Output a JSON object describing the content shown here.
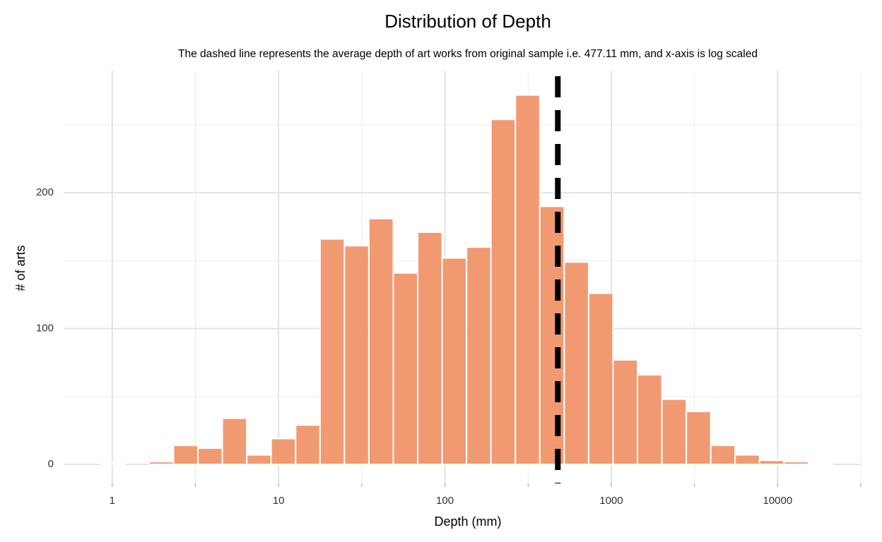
{
  "chart_data": {
    "type": "histogram",
    "title": "Distribution of Depth",
    "subtitle": "The dashed line represents the average depth of art works from original sample i.e. 477.11 mm, and x-axis is log scaled",
    "x_label": "Depth (mm)",
    "y_label": "# of arts",
    "bins": [
      0.847,
      1.188,
      1.665,
      2.335,
      3.274,
      4.59,
      6.436,
      9.026,
      12.66,
      17.75,
      24.89,
      34.89,
      48.93,
      68.61,
      96.2,
      134.9,
      189.1,
      265.2,
      371.8,
      521.4,
      731.1,
      1025,
      1437,
      2015,
      2826,
      3962,
      5556,
      7791,
      10925,
      15318,
      21480
    ],
    "values": [
      1,
      0,
      2,
      14,
      12,
      34,
      7,
      19,
      29,
      166,
      161,
      181,
      141,
      171,
      152,
      160,
      254,
      272,
      190,
      149,
      126,
      77,
      66,
      48,
      39,
      14,
      7,
      3,
      2,
      1
    ],
    "color": "#f0956a",
    "x_log_scale": true,
    "xlim": [
      0.51,
      31623
    ],
    "xticks": [
      1,
      10,
      100,
      1000,
      10000
    ],
    "xminorticks": [
      3.162,
      31.62,
      316.2,
      3162,
      31623
    ],
    "ylim": [
      -14,
      290
    ],
    "yticks": [
      0,
      100,
      200
    ],
    "yminorticks": [
      50,
      150,
      250
    ],
    "grid": true,
    "mean_line": {
      "value": 477.11,
      "color": "#000000",
      "style": "dashed"
    }
  }
}
